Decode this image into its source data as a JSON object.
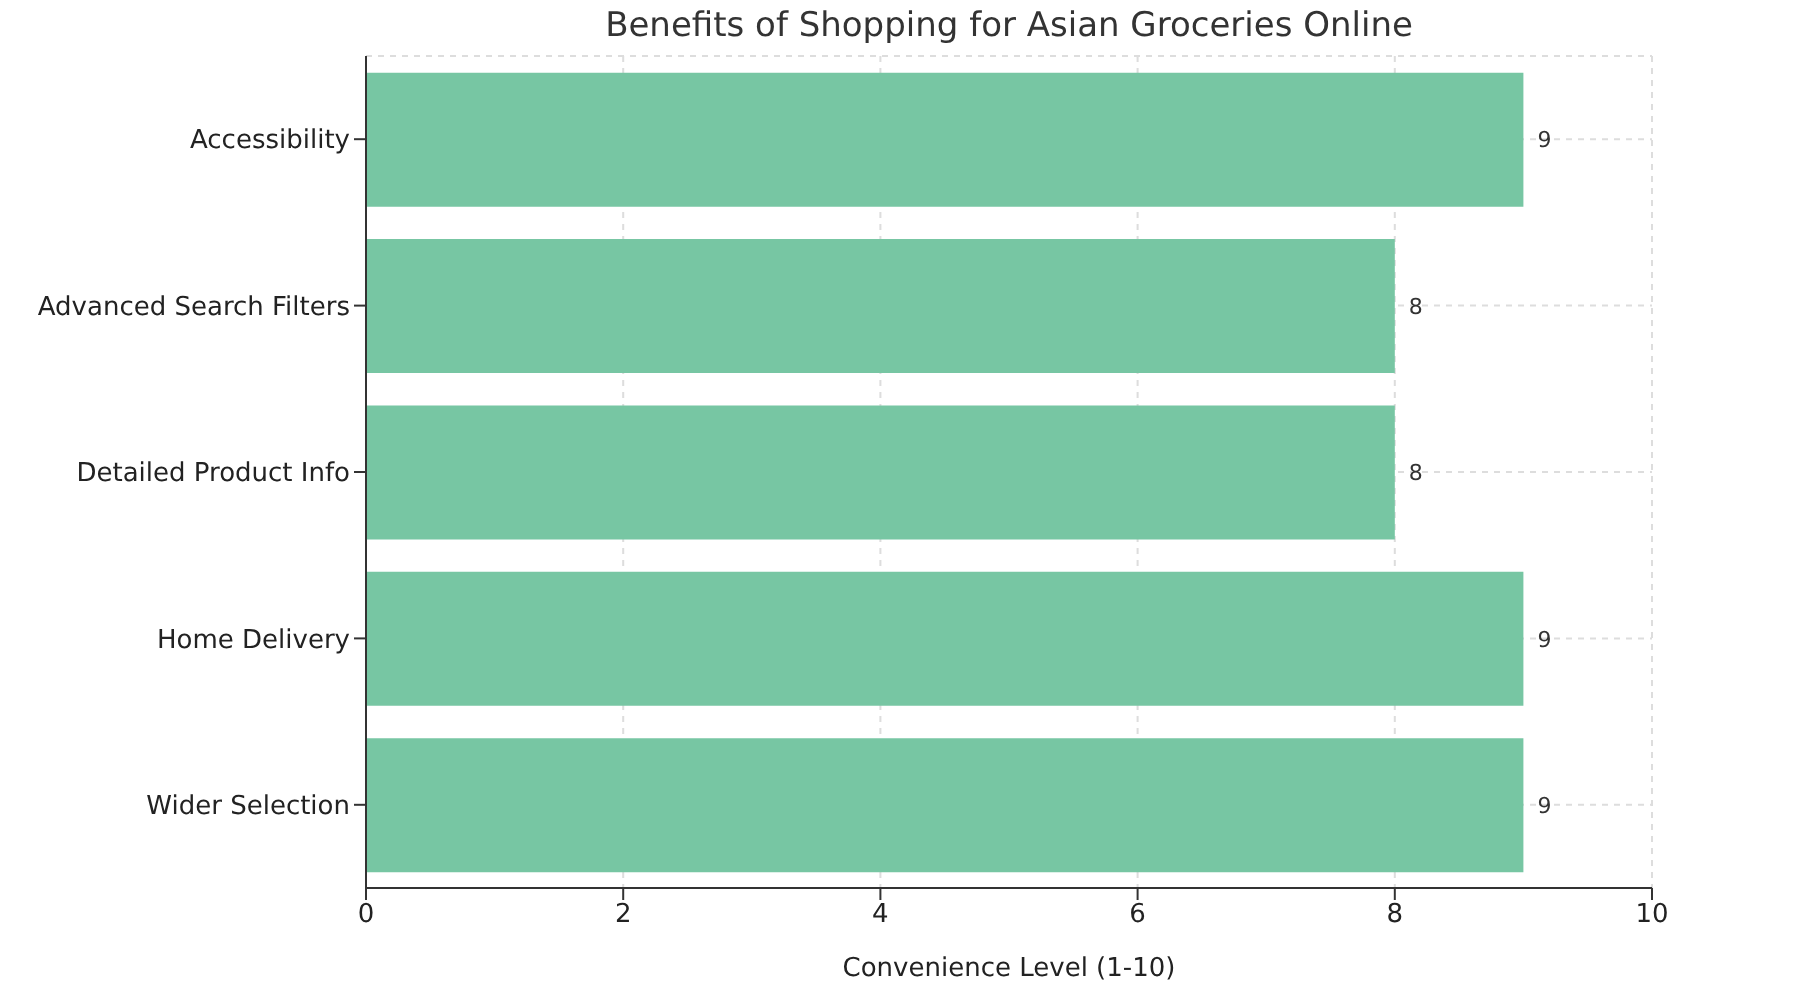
{
  "chart_data": {
    "type": "bar",
    "orientation": "horizontal",
    "title": "Benefits of Shopping for Asian Groceries Online",
    "xlabel": "Convenience Level (1-10)",
    "categories": [
      "Accessibility",
      "Advanced Search Filters",
      "Detailed Product Info",
      "Home Delivery",
      "Wider Selection"
    ],
    "values": [
      9,
      8,
      8,
      9,
      9
    ],
    "color": "#77c6a3",
    "xlim": [
      0,
      10
    ],
    "xticks": [
      0,
      2,
      4,
      6,
      8,
      10
    ],
    "grid": true,
    "data_labels": true
  }
}
